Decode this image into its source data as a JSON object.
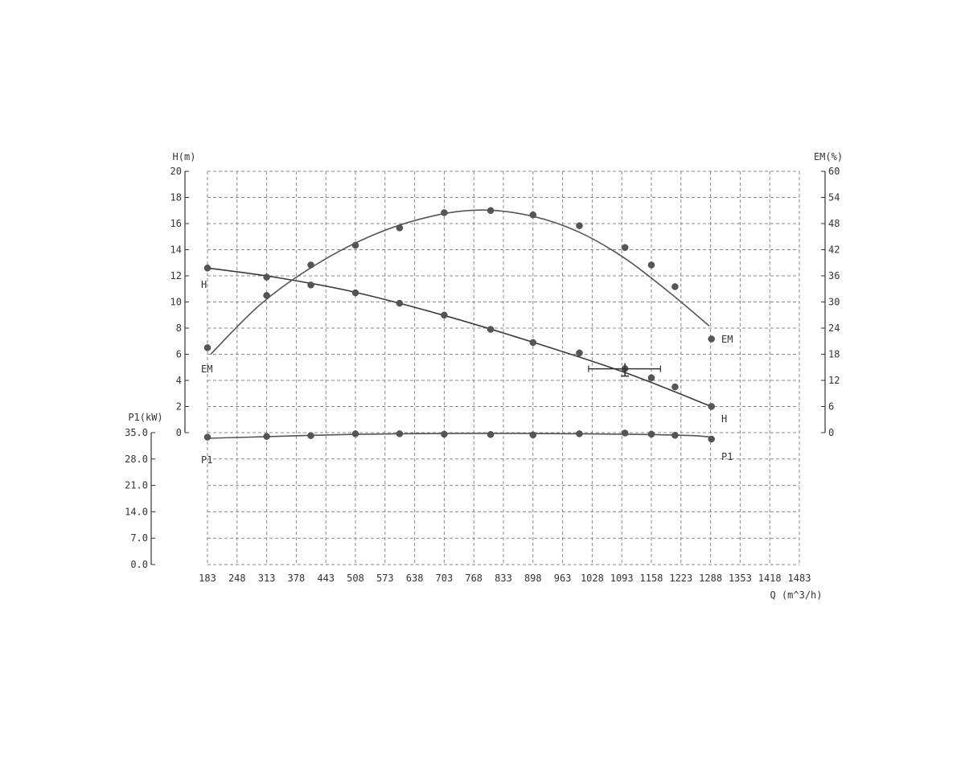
{
  "chart_data": {
    "type": "line",
    "title": "",
    "x_axis": {
      "label": "Q (m^3/h)",
      "ticks": [
        "183",
        "248",
        "313",
        "378",
        "443",
        "508",
        "573",
        "638",
        "703",
        "768",
        "833",
        "898",
        "963",
        "1028",
        "1093",
        "1158",
        "1223",
        "1288",
        "1353",
        "1418",
        "1483"
      ],
      "range": [
        183,
        1483
      ]
    },
    "y_axis_left_top": {
      "label": "H(m)",
      "ticks": [
        "0",
        "2",
        "4",
        "6",
        "8",
        "10",
        "12",
        "14",
        "16",
        "18",
        "20"
      ],
      "range": [
        0,
        20
      ]
    },
    "y_axis_right": {
      "label": "EM(%)",
      "ticks": [
        "0",
        "6",
        "12",
        "18",
        "24",
        "30",
        "36",
        "42",
        "48",
        "54",
        "60"
      ],
      "range": [
        0,
        60
      ]
    },
    "y_axis_left_bottom": {
      "label": "P1(kW)",
      "ticks": [
        "0.0",
        "7.0",
        "14.0",
        "21.0",
        "28.0",
        "35.0"
      ],
      "range": [
        0,
        35
      ]
    },
    "grid": true,
    "series": [
      {
        "name": "H",
        "axis": "left_top",
        "color": "#3a3a3a",
        "points": [
          [
            183,
            12.6
          ],
          [
            313,
            11.9
          ],
          [
            410,
            11.3
          ],
          [
            508,
            10.7
          ],
          [
            605,
            9.9
          ],
          [
            703,
            9.0
          ],
          [
            805,
            7.9
          ],
          [
            898,
            6.9
          ],
          [
            1000,
            6.1
          ],
          [
            1100,
            4.9
          ],
          [
            1158,
            4.2
          ],
          [
            1210,
            3.5
          ],
          [
            1290,
            2.0
          ]
        ],
        "fit": [
          [
            183,
            12.6
          ],
          [
            330,
            11.9
          ],
          [
            500,
            10.8
          ],
          [
            700,
            9.0
          ],
          [
            900,
            6.9
          ],
          [
            1100,
            4.6
          ],
          [
            1290,
            2.0
          ]
        ]
      },
      {
        "name": "EM",
        "axis": "right",
        "color": "#555555",
        "points": [
          [
            183,
            19.5
          ],
          [
            313,
            31.5
          ],
          [
            410,
            38.5
          ],
          [
            508,
            43.0
          ],
          [
            605,
            47.0
          ],
          [
            703,
            50.5
          ],
          [
            805,
            51.0
          ],
          [
            898,
            50.0
          ],
          [
            1000,
            47.5
          ],
          [
            1100,
            42.5
          ],
          [
            1158,
            38.5
          ],
          [
            1210,
            33.5
          ],
          [
            1290,
            21.5
          ]
        ],
        "fit": [
          [
            190,
            18.0
          ],
          [
            300,
            29.5
          ],
          [
            420,
            38.5
          ],
          [
            550,
            45.5
          ],
          [
            680,
            49.8
          ],
          [
            790,
            51.1
          ],
          [
            900,
            49.6
          ],
          [
            1000,
            46.0
          ],
          [
            1100,
            40.0
          ],
          [
            1200,
            32.0
          ],
          [
            1285,
            24.5
          ]
        ]
      },
      {
        "name": "P1",
        "axis": "left_bottom",
        "color": "#555555",
        "points": [
          [
            183,
            33.8
          ],
          [
            313,
            34.0
          ],
          [
            410,
            34.2
          ],
          [
            508,
            34.7
          ],
          [
            605,
            34.7
          ],
          [
            703,
            34.6
          ],
          [
            805,
            34.5
          ],
          [
            898,
            34.4
          ],
          [
            1000,
            34.7
          ],
          [
            1100,
            34.9
          ],
          [
            1158,
            34.6
          ],
          [
            1210,
            34.3
          ],
          [
            1290,
            33.3
          ]
        ],
        "fit": [
          [
            183,
            33.5
          ],
          [
            300,
            33.9
          ],
          [
            450,
            34.4
          ],
          [
            600,
            34.7
          ],
          [
            800,
            34.8
          ],
          [
            1000,
            34.7
          ],
          [
            1150,
            34.5
          ],
          [
            1250,
            34.2
          ],
          [
            1290,
            33.8
          ]
        ]
      }
    ],
    "operating_point": {
      "q": 1100,
      "h": 4.7,
      "q_min": 1020,
      "q_max": 1178
    },
    "labels": {
      "h_left": "H",
      "h_right": "H",
      "em_left": "EM",
      "em_right": "EM",
      "p1_left": "P1",
      "p1_right": "P1"
    }
  }
}
